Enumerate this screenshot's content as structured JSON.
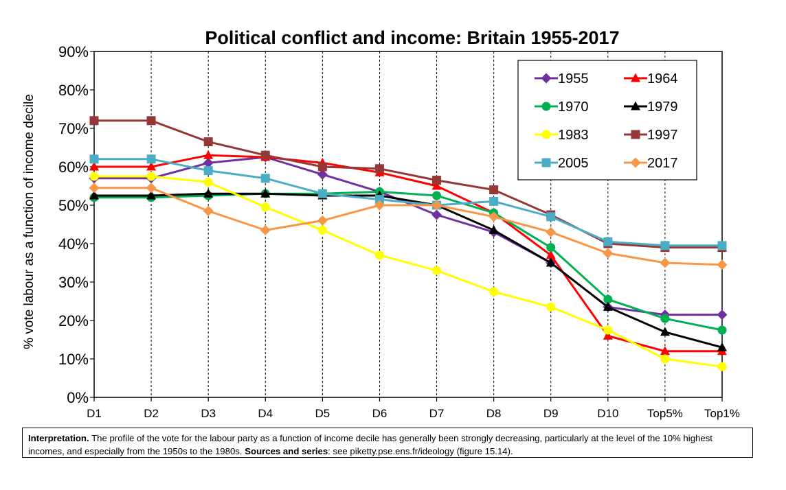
{
  "chart_data": {
    "type": "line",
    "title": "Political conflict and income: Britain 1955-2017",
    "ylabel": "% vote labour as a function of income decile",
    "xlabel": "",
    "categories": [
      "D1",
      "D2",
      "D3",
      "D4",
      "D5",
      "D6",
      "D7",
      "D8",
      "D9",
      "D10",
      "Top5%",
      "Top1%"
    ],
    "ylim": [
      0,
      0.9
    ],
    "yticks": [
      "0%",
      "10%",
      "20%",
      "30%",
      "40%",
      "50%",
      "60%",
      "70%",
      "80%",
      "90%"
    ],
    "grid": "vertical dashed lines at each decile",
    "legend_position": "top-right",
    "series": [
      {
        "name": "1955",
        "color": "#7030a0",
        "marker": "diamond",
        "values": [
          0.57,
          0.57,
          0.61,
          0.625,
          0.58,
          0.535,
          0.475,
          0.43,
          0.35,
          0.235,
          0.215,
          0.215
        ]
      },
      {
        "name": "1964",
        "color": "#ff0000",
        "marker": "triangle",
        "values": [
          0.6,
          0.6,
          0.63,
          0.625,
          0.61,
          0.585,
          0.55,
          0.48,
          0.37,
          0.16,
          0.12,
          0.12
        ]
      },
      {
        "name": "1970",
        "color": "#00b050",
        "marker": "circle",
        "values": [
          0.52,
          0.52,
          0.525,
          0.53,
          0.53,
          0.535,
          0.525,
          0.48,
          0.39,
          0.255,
          0.205,
          0.175
        ]
      },
      {
        "name": "1979",
        "color": "#000000",
        "marker": "triangle",
        "values": [
          0.525,
          0.525,
          0.53,
          0.53,
          0.525,
          0.525,
          0.5,
          0.435,
          0.35,
          0.235,
          0.17,
          0.13
        ]
      },
      {
        "name": "1983",
        "color": "#ffff00",
        "marker": "circle",
        "values": [
          0.575,
          0.575,
          0.56,
          0.495,
          0.435,
          0.37,
          0.33,
          0.275,
          0.235,
          0.175,
          0.1,
          0.08
        ]
      },
      {
        "name": "1997",
        "color": "#953735",
        "marker": "square",
        "values": [
          0.72,
          0.72,
          0.665,
          0.63,
          0.6,
          0.595,
          0.565,
          0.54,
          0.475,
          0.4,
          0.39,
          0.39
        ]
      },
      {
        "name": "2005",
        "color": "#4bacc6",
        "marker": "square",
        "values": [
          0.62,
          0.62,
          0.59,
          0.57,
          0.53,
          0.515,
          0.5,
          0.51,
          0.47,
          0.405,
          0.395,
          0.395
        ]
      },
      {
        "name": "2017",
        "color": "#f79646",
        "marker": "diamond",
        "values": [
          0.545,
          0.545,
          0.485,
          0.435,
          0.46,
          0.5,
          0.5,
          0.47,
          0.43,
          0.375,
          0.35,
          0.345
        ]
      }
    ]
  },
  "note": {
    "interp_label": "Interpretation.",
    "interp_text": " The profile of the vote for the labour party as a function of income decile has generally been strongly decreasing, particularly at the level of the 10% highest incomes, and especially from the 1950s to the 1980s. ",
    "sources_label": "Sources and series",
    "sources_text": ": see piketty.pse.ens.fr/ideology (figure 15.14)."
  }
}
